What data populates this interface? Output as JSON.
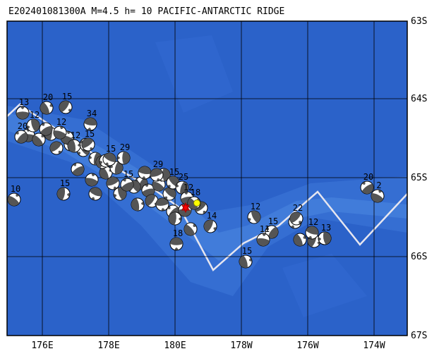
{
  "title": "E202401081300A M=4.5 h= 10 PACIFIC-ANTARCTIC RIDGE",
  "lat_labels": [
    "63S",
    "64S",
    "65S",
    "66S",
    "67S"
  ],
  "lon_labels": [
    "176E",
    "178E",
    "180E",
    "178W",
    "176W",
    "174W"
  ],
  "events": [
    "13",
    "20",
    "15",
    "34",
    "12",
    "20",
    "12",
    "12",
    "15",
    "15",
    "29",
    "15",
    "10",
    "15",
    "29",
    "15",
    "25",
    "12",
    "18",
    "14",
    "18",
    "12",
    "15",
    "11",
    "15",
    "22",
    "12",
    "13",
    "20",
    "2"
  ]
}
